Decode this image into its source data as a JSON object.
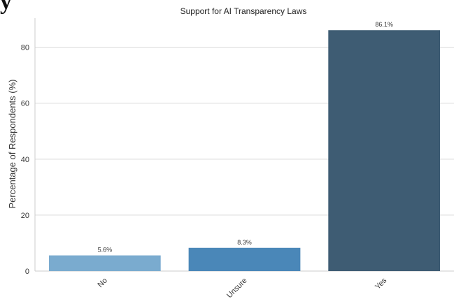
{
  "chart_data": {
    "type": "bar",
    "title": "Support for AI Transparency Laws",
    "xlabel": "",
    "ylabel": "Percentage of Respondents (%)",
    "categories": [
      "No",
      "Unsure",
      "Yes"
    ],
    "values": [
      5.6,
      8.3,
      86.1
    ],
    "value_labels": [
      "5.6%",
      "8.3%",
      "86.1%"
    ],
    "colors": [
      "#7aabcf",
      "#4a87b8",
      "#3e5c73"
    ],
    "ylim": [
      0,
      90.4
    ],
    "yticks": [
      0,
      20,
      40,
      60,
      80
    ],
    "grid": "horizontal",
    "xtick_rotation": 45
  },
  "stray_text": "y"
}
